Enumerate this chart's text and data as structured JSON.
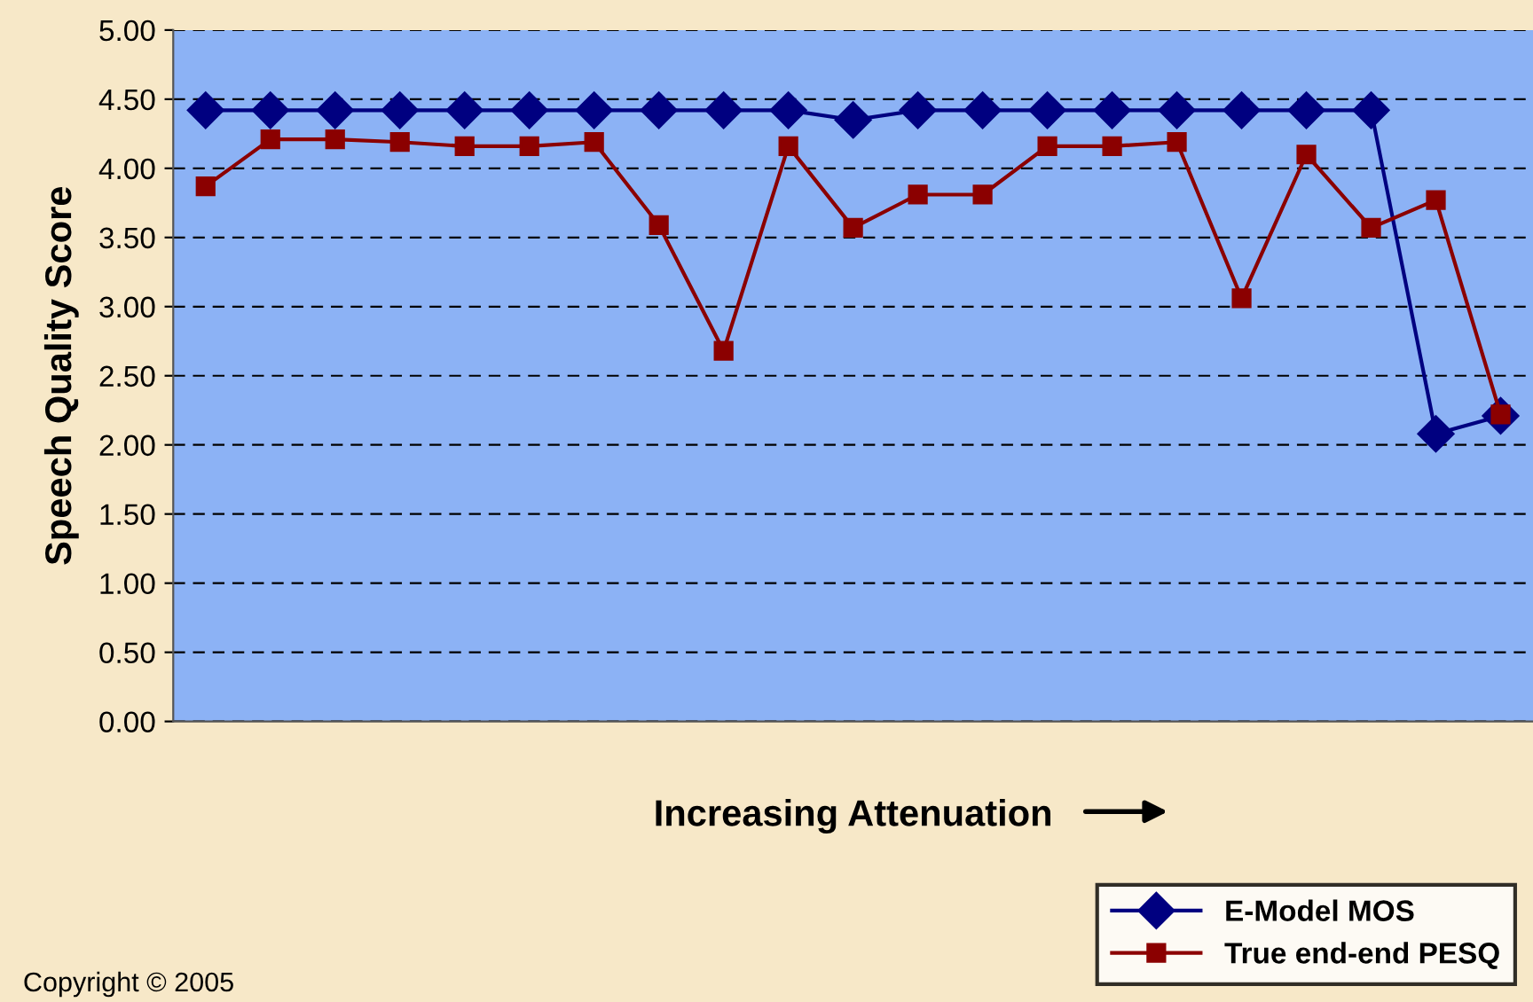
{
  "chart_data": {
    "type": "line",
    "ylabel": "Speech Quality Score",
    "xlabel": "Increasing Attenuation",
    "categories": [
      null,
      null,
      null,
      null,
      null,
      null,
      null,
      null,
      null,
      null,
      null,
      null,
      null,
      null,
      null,
      null,
      null,
      null,
      null,
      null,
      null
    ],
    "series": [
      {
        "name": "E-Model MOS",
        "color": "#000080",
        "marker": "diamond",
        "values": [
          4.42,
          4.42,
          4.42,
          4.42,
          4.42,
          4.42,
          4.42,
          4.42,
          4.42,
          4.42,
          4.35,
          4.42,
          4.42,
          4.42,
          4.42,
          4.42,
          4.42,
          4.42,
          4.42,
          2.08,
          2.21
        ]
      },
      {
        "name": "True end-end PESQ",
        "color": "#8b0000",
        "marker": "square",
        "values": [
          3.87,
          4.21,
          4.21,
          4.19,
          4.16,
          4.16,
          4.19,
          3.59,
          2.68,
          4.16,
          3.57,
          3.81,
          3.81,
          4.16,
          4.16,
          4.19,
          3.06,
          4.1,
          3.57,
          3.77,
          2.22
        ]
      }
    ],
    "ylim": [
      0,
      5
    ],
    "yticks": [
      {
        "value": 0,
        "label": "0.00"
      },
      {
        "value": 0.5,
        "label": "0.50"
      },
      {
        "value": 1,
        "label": "1.00"
      },
      {
        "value": 1.5,
        "label": "1.50"
      },
      {
        "value": 2,
        "label": "2.00"
      },
      {
        "value": 2.5,
        "label": "2.50"
      },
      {
        "value": 3,
        "label": "3.00"
      },
      {
        "value": 3.5,
        "label": "3.50"
      },
      {
        "value": 4,
        "label": "4.00"
      },
      {
        "value": 4.5,
        "label": "4.50"
      },
      {
        "value": 5,
        "label": "5.00"
      }
    ],
    "grid": "y",
    "legend": "bottom right",
    "line_style": "solid",
    "annotations": [
      "Copyright © 2005"
    ]
  }
}
